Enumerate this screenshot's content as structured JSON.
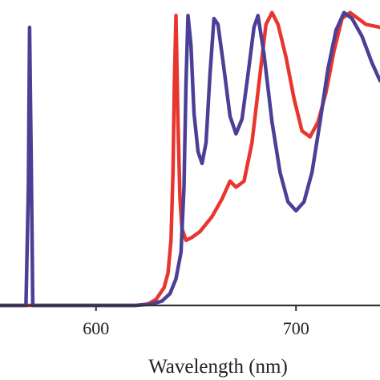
{
  "chart_data": {
    "type": "line",
    "title": "",
    "xlabel": "Wavelength (nm)",
    "ylabel": "",
    "xlim": [
      552,
      742
    ],
    "ylim": [
      0,
      1
    ],
    "x_ticks": [
      600,
      700
    ],
    "x_tick_labels": [
      "600",
      "700"
    ],
    "grid": false,
    "legend": "none",
    "series": [
      {
        "color": "#e8362e",
        "points": [
          [
            552,
            0.0
          ],
          [
            600,
            0.0
          ],
          [
            620,
            0.0
          ],
          [
            626,
            0.005
          ],
          [
            630,
            0.02
          ],
          [
            634,
            0.06
          ],
          [
            636,
            0.11
          ],
          [
            637.5,
            0.22
          ],
          [
            638.5,
            0.45
          ],
          [
            639.2,
            0.75
          ],
          [
            640,
            0.98
          ],
          [
            641,
            0.62
          ],
          [
            642,
            0.36
          ],
          [
            643,
            0.26
          ],
          [
            645,
            0.22
          ],
          [
            648,
            0.23
          ],
          [
            652,
            0.25
          ],
          [
            658,
            0.3
          ],
          [
            663,
            0.36
          ],
          [
            667,
            0.42
          ],
          [
            670,
            0.4
          ],
          [
            674,
            0.42
          ],
          [
            678,
            0.55
          ],
          [
            682,
            0.78
          ],
          [
            685,
            0.95
          ],
          [
            688,
            0.99
          ],
          [
            691,
            0.95
          ],
          [
            695,
            0.84
          ],
          [
            699,
            0.7
          ],
          [
            703,
            0.59
          ],
          [
            707,
            0.57
          ],
          [
            711,
            0.62
          ],
          [
            715,
            0.72
          ],
          [
            719,
            0.86
          ],
          [
            723,
            0.97
          ],
          [
            727,
            0.99
          ],
          [
            731,
            0.97
          ],
          [
            735,
            0.95
          ],
          [
            742,
            0.94
          ]
        ]
      },
      {
        "color": "#4b3f96",
        "points": [
          [
            552,
            0.0
          ],
          [
            565,
            0.0
          ],
          [
            566.2,
            0.4
          ],
          [
            566.8,
            0.94
          ],
          [
            567.6,
            0.5
          ],
          [
            568.4,
            0.0
          ],
          [
            620,
            0.0
          ],
          [
            628,
            0.005
          ],
          [
            633,
            0.015
          ],
          [
            637,
            0.04
          ],
          [
            640,
            0.09
          ],
          [
            642.5,
            0.18
          ],
          [
            644,
            0.4
          ],
          [
            645,
            0.75
          ],
          [
            646,
            0.98
          ],
          [
            647.5,
            0.88
          ],
          [
            649,
            0.65
          ],
          [
            651,
            0.52
          ],
          [
            653,
            0.48
          ],
          [
            655,
            0.55
          ],
          [
            657,
            0.78
          ],
          [
            659,
            0.97
          ],
          [
            661,
            0.95
          ],
          [
            664,
            0.8
          ],
          [
            667,
            0.64
          ],
          [
            670,
            0.58
          ],
          [
            673,
            0.63
          ],
          [
            676,
            0.78
          ],
          [
            679,
            0.94
          ],
          [
            681,
            0.98
          ],
          [
            684,
            0.85
          ],
          [
            688,
            0.62
          ],
          [
            692,
            0.45
          ],
          [
            696,
            0.35
          ],
          [
            700,
            0.32
          ],
          [
            704,
            0.35
          ],
          [
            708,
            0.45
          ],
          [
            712,
            0.62
          ],
          [
            716,
            0.8
          ],
          [
            720,
            0.93
          ],
          [
            724,
            0.99
          ],
          [
            728,
            0.97
          ],
          [
            733,
            0.91
          ],
          [
            738,
            0.82
          ],
          [
            742,
            0.76
          ]
        ]
      }
    ]
  }
}
